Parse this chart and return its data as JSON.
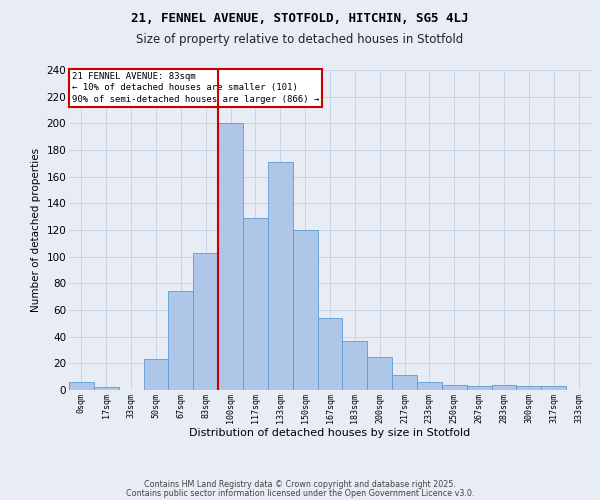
{
  "title1": "21, FENNEL AVENUE, STOTFOLD, HITCHIN, SG5 4LJ",
  "title2": "Size of property relative to detached houses in Stotfold",
  "xlabel": "Distribution of detached houses by size in Stotfold",
  "ylabel": "Number of detached properties",
  "bar_labels": [
    "0sqm",
    "17sqm",
    "33sqm",
    "50sqm",
    "67sqm",
    "83sqm",
    "100sqm",
    "117sqm",
    "133sqm",
    "150sqm",
    "167sqm",
    "183sqm",
    "200sqm",
    "217sqm",
    "233sqm",
    "250sqm",
    "267sqm",
    "283sqm",
    "300sqm",
    "317sqm",
    "333sqm"
  ],
  "bar_values": [
    6,
    2,
    0,
    23,
    74,
    103,
    200,
    129,
    171,
    120,
    54,
    37,
    25,
    11,
    6,
    4,
    3,
    4,
    3,
    3,
    0
  ],
  "bar_color": "#aec6e8",
  "bar_edge_color": "#5b9bd5",
  "property_bin_index": 5,
  "property_label": "21 FENNEL AVENUE: 83sqm",
  "annotation_line1": "← 10% of detached houses are smaller (101)",
  "annotation_line2": "90% of semi-detached houses are larger (866) →",
  "annotation_box_color": "#ffffff",
  "annotation_box_edge_color": "#cc0000",
  "vline_color": "#cc0000",
  "grid_color": "#c8d4e8",
  "background_color": "#e8edf5",
  "footer_line1": "Contains HM Land Registry data © Crown copyright and database right 2025.",
  "footer_line2": "Contains public sector information licensed under the Open Government Licence v3.0.",
  "ylim": [
    0,
    240
  ],
  "yticks": [
    0,
    20,
    40,
    60,
    80,
    100,
    120,
    140,
    160,
    180,
    200,
    220,
    240
  ]
}
